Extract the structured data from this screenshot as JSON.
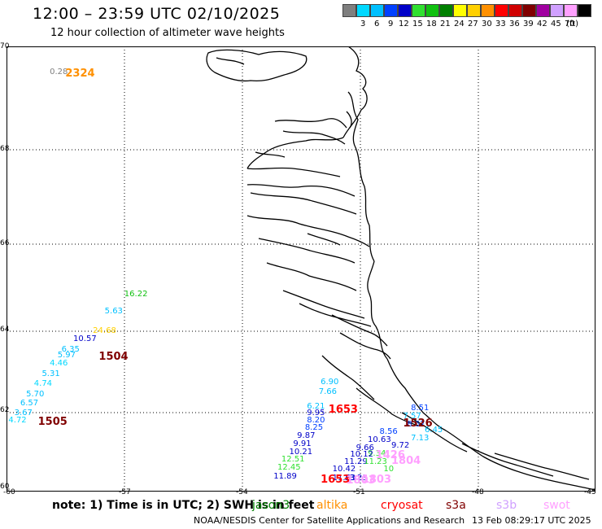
{
  "header": {
    "title": "12:00 – 23:59 UTC 02/10/2025",
    "subtitle": "12 hour collection of altimeter wave heights"
  },
  "colorbar": {
    "unit": "(ft)",
    "swatches": [
      {
        "label": "",
        "color": "#7f7f7f"
      },
      {
        "label": "3",
        "color": "#00d8ff"
      },
      {
        "label": "6",
        "color": "#00c0ff"
      },
      {
        "label": "9",
        "color": "#0040ff"
      },
      {
        "label": "12",
        "color": "#0000c8"
      },
      {
        "label": "15",
        "color": "#30e030"
      },
      {
        "label": "18",
        "color": "#10c010"
      },
      {
        "label": "21",
        "color": "#008000"
      },
      {
        "label": "24",
        "color": "#ffff00"
      },
      {
        "label": "27",
        "color": "#ffd000"
      },
      {
        "label": "30",
        "color": "#ff9000"
      },
      {
        "label": "33",
        "color": "#ff0000"
      },
      {
        "label": "36",
        "color": "#d00000"
      },
      {
        "label": "39",
        "color": "#800000"
      },
      {
        "label": "42",
        "color": "#a000a0"
      },
      {
        "label": "45",
        "color": "#d0a0ff"
      },
      {
        "label": "70",
        "color": "#ffa0ff"
      },
      {
        "label": "",
        "color": "#000000"
      }
    ]
  },
  "map": {
    "lat_labels": [
      "70",
      "68",
      "66",
      "64",
      "62",
      "60"
    ],
    "lon_labels": [
      "-60",
      "-57",
      "-54",
      "-51",
      "-48",
      "-45"
    ],
    "lon_range": [
      -60,
      -45
    ],
    "lat_range": [
      60,
      70
    ],
    "wave_heights": [
      {
        "text": "0.28",
        "color": "#7f7f7f",
        "lon": -58.9,
        "lat": 69.5
      },
      {
        "text": "16.22",
        "color": "#10c010",
        "lon": -57.0,
        "lat": 64.85
      },
      {
        "text": "5.63",
        "color": "#00c0ff",
        "lon": -57.5,
        "lat": 64.45
      },
      {
        "text": "24.68",
        "color": "#ffd000",
        "lon": -57.8,
        "lat": 64.0
      },
      {
        "text": "10.57",
        "color": "#0000c8",
        "lon": -58.3,
        "lat": 63.8
      },
      {
        "text": "6.35",
        "color": "#00c0ff",
        "lon": -58.6,
        "lat": 63.55
      },
      {
        "text": "5.97",
        "color": "#00c0ff",
        "lon": -58.7,
        "lat": 63.4
      },
      {
        "text": "4.46",
        "color": "#00d8ff",
        "lon": -58.9,
        "lat": 63.2
      },
      {
        "text": "5.31",
        "color": "#00c0ff",
        "lon": -59.1,
        "lat": 62.95
      },
      {
        "text": "4.74",
        "color": "#00d8ff",
        "lon": -59.3,
        "lat": 62.7
      },
      {
        "text": "5.70",
        "color": "#00c0ff",
        "lon": -59.5,
        "lat": 62.45
      },
      {
        "text": "6.57",
        "color": "#00c0ff",
        "lon": -59.65,
        "lat": 62.22
      },
      {
        "text": "3.67",
        "color": "#00c0ff",
        "lon": -59.8,
        "lat": 61.98
      },
      {
        "text": "4.72",
        "color": "#00d8ff",
        "lon": -59.95,
        "lat": 61.8
      },
      {
        "text": "6.90",
        "color": "#00c0ff",
        "lon": -52.0,
        "lat": 62.75
      },
      {
        "text": "7.66",
        "color": "#00c0ff",
        "lon": -52.05,
        "lat": 62.5
      },
      {
        "text": "6.21",
        "color": "#00c0ff",
        "lon": -52.35,
        "lat": 62.15
      },
      {
        "text": "9.95",
        "color": "#0000c8",
        "lon": -52.35,
        "lat": 61.98
      },
      {
        "text": "8.20",
        "color": "#0040ff",
        "lon": -52.35,
        "lat": 61.8
      },
      {
        "text": "8.25",
        "color": "#0040ff",
        "lon": -52.4,
        "lat": 61.6
      },
      {
        "text": "9.87",
        "color": "#0000c8",
        "lon": -52.6,
        "lat": 61.4
      },
      {
        "text": "9.91",
        "color": "#0000c8",
        "lon": -52.7,
        "lat": 61.2
      },
      {
        "text": "10.21",
        "color": "#0000c8",
        "lon": -52.8,
        "lat": 61.0
      },
      {
        "text": "12.51",
        "color": "#30e030",
        "lon": -53.0,
        "lat": 60.8
      },
      {
        "text": "12.45",
        "color": "#30e030",
        "lon": -53.1,
        "lat": 60.6
      },
      {
        "text": "11.89",
        "color": "#0000c8",
        "lon": -53.2,
        "lat": 60.38
      },
      {
        "text": "8.51",
        "color": "#0040ff",
        "lon": -49.7,
        "lat": 62.1
      },
      {
        "text": "7.57",
        "color": "#00c0ff",
        "lon": -49.9,
        "lat": 61.9
      },
      {
        "text": "8.67",
        "color": "#0040ff",
        "lon": -49.8,
        "lat": 61.7
      },
      {
        "text": "6.45",
        "color": "#00c0ff",
        "lon": -49.35,
        "lat": 61.55
      },
      {
        "text": "8.56",
        "color": "#0040ff",
        "lon": -50.5,
        "lat": 61.5
      },
      {
        "text": "7.13",
        "color": "#00c0ff",
        "lon": -49.7,
        "lat": 61.35
      },
      {
        "text": "10.63",
        "color": "#0000c8",
        "lon": -50.8,
        "lat": 61.3
      },
      {
        "text": "9.72",
        "color": "#0000c8",
        "lon": -50.2,
        "lat": 61.15
      },
      {
        "text": "9.66",
        "color": "#0000c8",
        "lon": -51.1,
        "lat": 61.1
      },
      {
        "text": "9.34",
        "color": "#30e030",
        "lon": -50.8,
        "lat": 60.95
      },
      {
        "text": "10.12",
        "color": "#0000c8",
        "lon": -51.25,
        "lat": 60.92
      },
      {
        "text": "11.29",
        "color": "#0000c8",
        "lon": -51.4,
        "lat": 60.75
      },
      {
        "text": "11.23",
        "color": "#30e030",
        "lon": -50.9,
        "lat": 60.75
      },
      {
        "text": "10",
        "color": "#30e030",
        "lon": -50.4,
        "lat": 60.55
      },
      {
        "text": "10.42",
        "color": "#0000c8",
        "lon": -51.7,
        "lat": 60.55
      },
      {
        "text": "11.63",
        "color": "#0000c8",
        "lon": -51.7,
        "lat": 60.33
      },
      {
        "text": "13.23",
        "color": "#0000c8",
        "lon": -51.4,
        "lat": 60.32
      }
    ],
    "pass_times": [
      {
        "text": "2324",
        "color": "#ff9000",
        "lon": -58.5,
        "lat": 69.5
      },
      {
        "text": "1504",
        "color": "#800000",
        "lon": -57.65,
        "lat": 63.4
      },
      {
        "text": "1505",
        "color": "#800000",
        "lon": -59.2,
        "lat": 61.8
      },
      {
        "text": "1653",
        "color": "#ff0000",
        "lon": -51.8,
        "lat": 62.1
      },
      {
        "text": "1653",
        "color": "#ff0000",
        "lon": -52.0,
        "lat": 60.33
      },
      {
        "text": "1526",
        "color": "#800000",
        "lon": -49.9,
        "lat": 61.75
      },
      {
        "text": "1426",
        "color": "#ffa0ff",
        "lon": -50.6,
        "lat": 60.95
      },
      {
        "text": "1804",
        "color": "#ffa0ff",
        "lon": -50.2,
        "lat": 60.8
      },
      {
        "text": "1803",
        "color": "#ffa0ff",
        "lon": -50.95,
        "lat": 60.32
      },
      {
        "text": "1803",
        "color": "#ffa0ff",
        "lon": -51.35,
        "lat": 60.3
      }
    ]
  },
  "footer": {
    "note": "note:  1) Time is in UTC;  2) SWH is in feet",
    "satellites": [
      {
        "name": "jason3",
        "color": "#008000"
      },
      {
        "name": "altika",
        "color": "#ff9000"
      },
      {
        "name": "cryosat",
        "color": "#ff0000"
      },
      {
        "name": "s3a",
        "color": "#800000"
      },
      {
        "name": "s3b",
        "color": "#d0a0ff"
      },
      {
        "name": "swot",
        "color": "#ffa0ff"
      }
    ],
    "credit": "NOAA/NESDIS Center for Satellite Applications and Research",
    "timestamp": "13 Feb 08:29:17 UTC 2025"
  }
}
